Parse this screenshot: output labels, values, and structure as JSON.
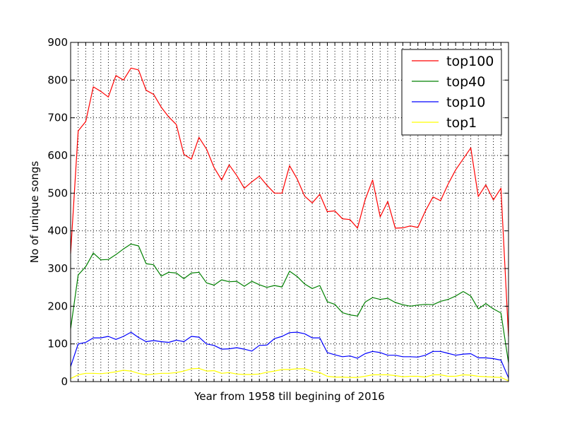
{
  "chart_data": {
    "type": "line",
    "title": "",
    "xlabel": "Year from 1958 till begining of 2016",
    "ylabel": "No of unique songs",
    "xlim": [
      1958,
      2016
    ],
    "ylim": [
      0,
      900
    ],
    "yticks": [
      0,
      100,
      200,
      300,
      400,
      500,
      600,
      700,
      800,
      900
    ],
    "ytick_labels": [
      "0",
      "100",
      "200",
      "300",
      "400",
      "500",
      "600",
      "700",
      "800",
      "900"
    ],
    "xticks_shown_labels": false,
    "grid": "dotted",
    "legend_position": "top-right",
    "x": [
      1958,
      1959,
      1960,
      1961,
      1962,
      1963,
      1964,
      1965,
      1966,
      1967,
      1968,
      1969,
      1970,
      1971,
      1972,
      1973,
      1974,
      1975,
      1976,
      1977,
      1978,
      1979,
      1980,
      1981,
      1982,
      1983,
      1984,
      1985,
      1986,
      1987,
      1988,
      1989,
      1990,
      1991,
      1992,
      1993,
      1994,
      1995,
      1996,
      1997,
      1998,
      1999,
      2000,
      2001,
      2002,
      2003,
      2004,
      2005,
      2006,
      2007,
      2008,
      2009,
      2010,
      2011,
      2012,
      2013,
      2014,
      2015,
      2016
    ],
    "series": [
      {
        "name": "top100",
        "color": "#ff0000",
        "values": [
          340,
          665,
          690,
          782,
          770,
          755,
          812,
          800,
          832,
          827,
          773,
          762,
          728,
          702,
          682,
          603,
          590,
          648,
          617,
          568,
          535,
          575,
          547,
          513,
          530,
          545,
          521,
          500,
          500,
          573,
          538,
          492,
          474,
          497,
          451,
          453,
          432,
          430,
          407,
          482,
          535,
          437,
          478,
          407,
          408,
          413,
          409,
          453,
          490,
          480,
          524,
          562,
          591,
          620,
          491,
          522,
          482,
          513,
          120
        ]
      },
      {
        "name": "top40",
        "color": "#008000",
        "values": [
          140,
          283,
          305,
          341,
          323,
          324,
          337,
          352,
          365,
          360,
          313,
          310,
          280,
          290,
          288,
          273,
          288,
          290,
          262,
          256,
          270,
          265,
          266,
          253,
          266,
          257,
          250,
          255,
          251,
          293,
          279,
          259,
          247,
          255,
          212,
          205,
          183,
          177,
          174,
          211,
          223,
          218,
          221,
          210,
          204,
          200,
          203,
          205,
          204,
          213,
          218,
          227,
          239,
          227,
          193,
          207,
          193,
          182,
          50
        ]
      },
      {
        "name": "top10",
        "color": "#0000ff",
        "values": [
          40,
          100,
          104,
          116,
          116,
          120,
          112,
          120,
          131,
          117,
          106,
          109,
          106,
          104,
          110,
          106,
          120,
          118,
          100,
          96,
          86,
          87,
          90,
          86,
          81,
          96,
          97,
          114,
          120,
          130,
          131,
          127,
          116,
          116,
          77,
          71,
          66,
          68,
          62,
          74,
          80,
          77,
          70,
          70,
          66,
          66,
          65,
          70,
          80,
          80,
          75,
          70,
          73,
          74,
          63,
          63,
          61,
          57,
          10
        ]
      },
      {
        "name": "top1",
        "color": "#ffff00",
        "values": [
          8,
          18,
          22,
          22,
          21,
          23,
          26,
          30,
          28,
          22,
          18,
          20,
          22,
          22,
          24,
          28,
          34,
          35,
          28,
          29,
          22,
          24,
          20,
          19,
          19,
          20,
          25,
          28,
          32,
          32,
          34,
          34,
          28,
          24,
          14,
          12,
          12,
          11,
          11,
          14,
          18,
          18,
          18,
          16,
          13,
          14,
          14,
          12,
          18,
          18,
          14,
          14,
          18,
          17,
          14,
          13,
          12,
          11,
          2
        ]
      }
    ]
  }
}
